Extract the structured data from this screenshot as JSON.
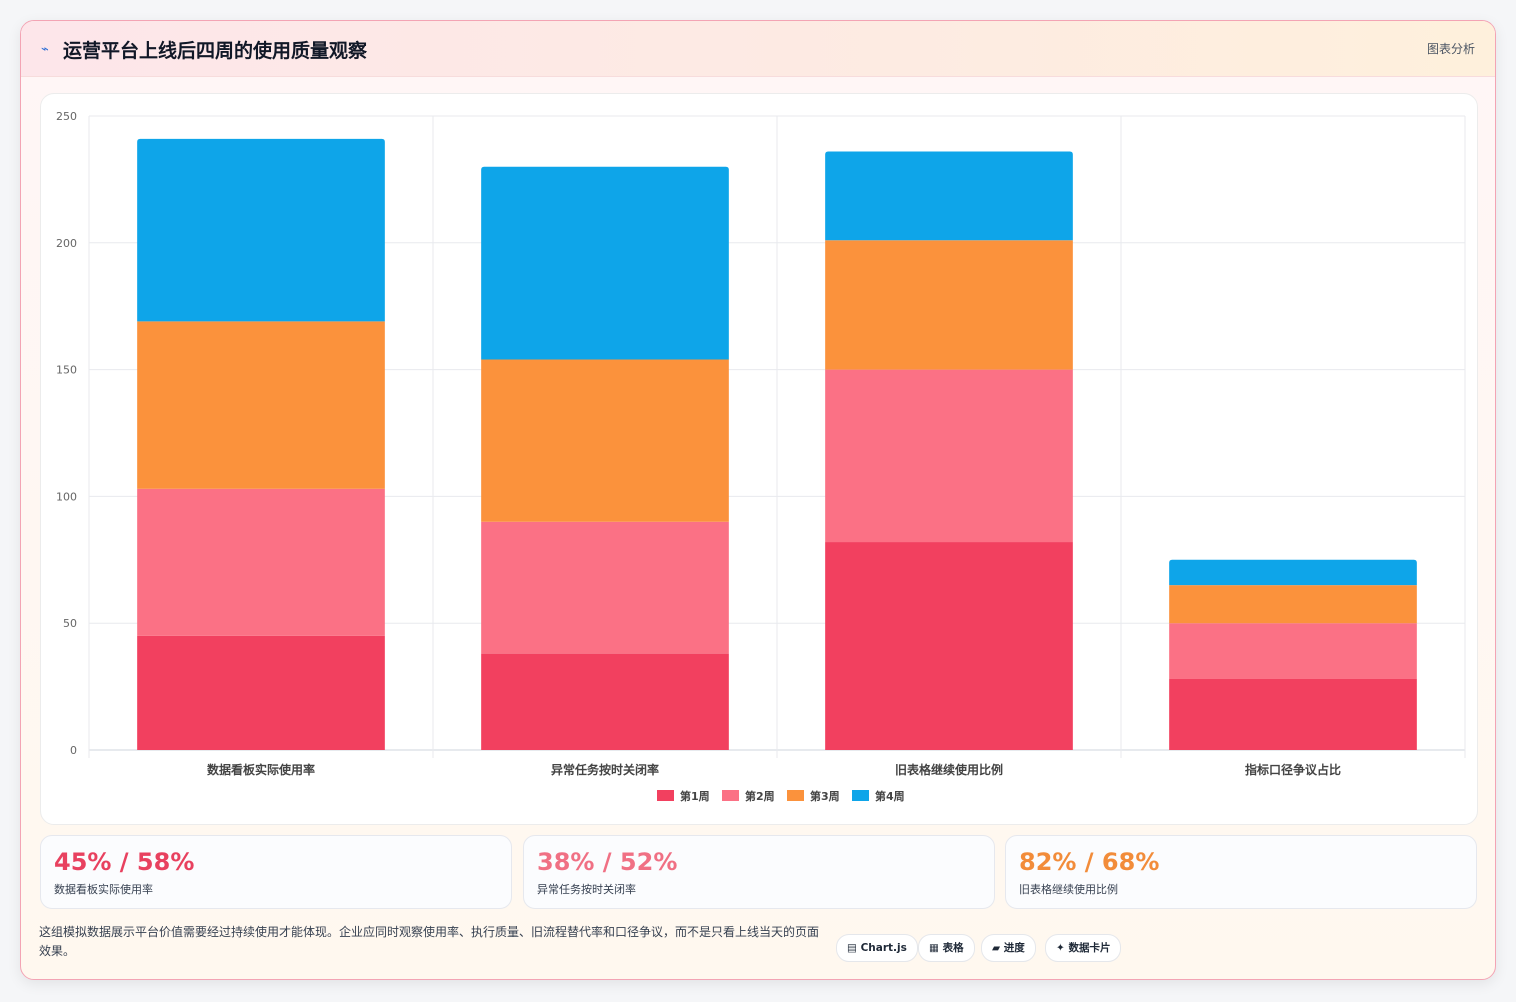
{
  "header": {
    "icon": "trend-line-icon",
    "icon_glyph": "⌁",
    "title": "运营平台上线后四周的使用质量观察",
    "tag": "图表分析"
  },
  "chart_data": {
    "type": "bar",
    "stacked": true,
    "categories": [
      "数据看板实际使用率",
      "异常任务按时关闭率",
      "旧表格继续使用比例",
      "指标口径争议占比"
    ],
    "series": [
      {
        "name": "第1周",
        "color": "#f2405f",
        "values": [
          45,
          38,
          82,
          28
        ]
      },
      {
        "name": "第2周",
        "color": "#fb7185",
        "values": [
          58,
          52,
          68,
          22
        ]
      },
      {
        "name": "第3周",
        "color": "#fb923c",
        "values": [
          66,
          64,
          51,
          15
        ]
      },
      {
        "name": "第4周",
        "color": "#0ea5e9",
        "values": [
          72,
          76,
          35,
          10
        ]
      }
    ],
    "ylim": [
      0,
      250
    ],
    "yticks": [
      0,
      50,
      100,
      150,
      200,
      250
    ],
    "grid": true,
    "legend_position": "bottom"
  },
  "stats": [
    {
      "value": "45% / 58%",
      "label": "数据看板实际使用率",
      "color": "#e8415f"
    },
    {
      "value": "38% / 52%",
      "label": "异常任务按时关闭率",
      "color": "#f07084"
    },
    {
      "value": "82% / 68%",
      "label": "旧表格继续使用比例",
      "color": "#f28c3a"
    }
  ],
  "footer": {
    "text": "这组模拟数据展示平台价值需要经过持续使用才能体现。企业应同时观察使用率、执行质量、旧流程替代率和口径争议，而不是只看上线当天的页面效果。",
    "chips": [
      {
        "icon": "chart-icon",
        "glyph": "▤",
        "label": "Chart.js"
      },
      {
        "icon": "table-icon",
        "glyph": "▦",
        "label": "表格"
      },
      {
        "icon": "progress-icon",
        "glyph": "▰",
        "label": "进度"
      },
      {
        "icon": "data-card-icon",
        "glyph": "✦",
        "label": "数据卡片"
      }
    ]
  }
}
